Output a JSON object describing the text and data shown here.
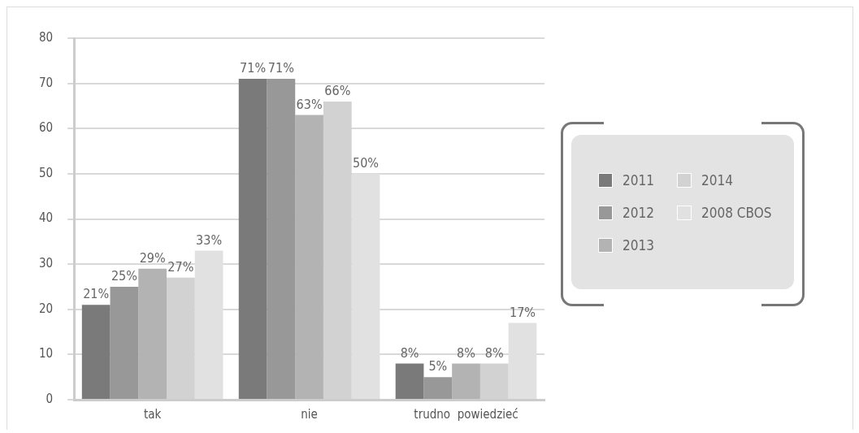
{
  "chart_data": {
    "type": "bar",
    "categories": [
      "tak",
      "nie",
      "trudno  powiedzieć"
    ],
    "series": [
      {
        "name": "2011",
        "color": "#7a7a7a",
        "values": [
          21,
          71,
          8
        ],
        "value_labels": [
          "21%",
          "71%",
          "8%"
        ]
      },
      {
        "name": "2012",
        "color": "#989898",
        "values": [
          25,
          71,
          5
        ],
        "value_labels": [
          "25%",
          "71%",
          "5%"
        ]
      },
      {
        "name": "2013",
        "color": "#b3b3b3",
        "values": [
          29,
          63,
          8
        ],
        "value_labels": [
          "29%",
          "63%",
          "8%"
        ]
      },
      {
        "name": "2014",
        "color": "#d2d2d2",
        "values": [
          27,
          66,
          8
        ],
        "value_labels": [
          "27%",
          "66%",
          "8%"
        ]
      },
      {
        "name": "2008 CBOS",
        "color": "#e1e1e1",
        "values": [
          33,
          50,
          17
        ],
        "value_labels": [
          "33%",
          "50%",
          "17%"
        ]
      }
    ],
    "ylim": [
      0,
      80
    ],
    "yticks": [
      0,
      10,
      20,
      30,
      40,
      50,
      60,
      70,
      80
    ],
    "grid": "y",
    "legend": "right"
  }
}
